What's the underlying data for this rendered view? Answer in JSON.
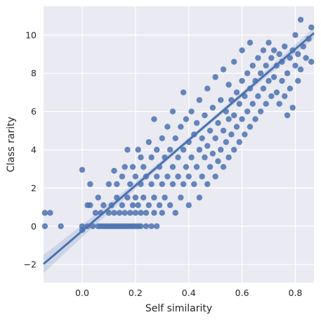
{
  "chart_data": {
    "type": "scatter",
    "title": "",
    "xlabel": "Self similarity",
    "ylabel": "Class rarity",
    "xlim": [
      -0.145,
      0.87
    ],
    "ylim": [
      -2.95,
      11.5
    ],
    "xticks": [
      0.0,
      0.2,
      0.4,
      0.6,
      0.8
    ],
    "xtick_labels": [
      "0.0",
      "0.2",
      "0.4",
      "0.6",
      "0.8"
    ],
    "yticks": [
      -2,
      0,
      2,
      4,
      6,
      8,
      10
    ],
    "ytick_labels": [
      "−2",
      "0",
      "2",
      "4",
      "6",
      "8",
      "10"
    ],
    "grid": true,
    "background": "#eaeaf2",
    "point_color": "#4c72b0",
    "regression_line": {
      "slope": 11.9,
      "intercept": -0.25,
      "ci_band": true
    },
    "scatter_points": [
      [
        -0.14,
        0.7
      ],
      [
        -0.12,
        0.7
      ],
      [
        -0.14,
        0.0
      ],
      [
        -0.08,
        0.0
      ],
      [
        0.0,
        2.95
      ],
      [
        0.0,
        0.0
      ],
      [
        0.02,
        0.0
      ],
      [
        0.02,
        1.1
      ],
      [
        0.03,
        1.1
      ],
      [
        0.03,
        2.2
      ],
      [
        0.04,
        0.0
      ],
      [
        0.05,
        0.7
      ],
      [
        0.06,
        0.0
      ],
      [
        0.06,
        1.5
      ],
      [
        0.07,
        0.0
      ],
      [
        0.07,
        0.7
      ],
      [
        0.08,
        0.0
      ],
      [
        0.08,
        1.1
      ],
      [
        0.09,
        0.0
      ],
      [
        0.1,
        0.0
      ],
      [
        0.1,
        0.7
      ],
      [
        0.1,
        2.2
      ],
      [
        0.11,
        0.0
      ],
      [
        0.11,
        1.1
      ],
      [
        0.12,
        0.0
      ],
      [
        0.12,
        0.7
      ],
      [
        0.13,
        0.0
      ],
      [
        0.13,
        1.5
      ],
      [
        0.13,
        2.2
      ],
      [
        0.14,
        0.0
      ],
      [
        0.14,
        0.7
      ],
      [
        0.15,
        0.0
      ],
      [
        0.15,
        1.1
      ],
      [
        0.15,
        2.6
      ],
      [
        0.16,
        0.0
      ],
      [
        0.16,
        0.7
      ],
      [
        0.16,
        3.1
      ],
      [
        0.17,
        0.0
      ],
      [
        0.17,
        1.5
      ],
      [
        0.17,
        4.0
      ],
      [
        0.18,
        0.0
      ],
      [
        0.18,
        0.7
      ],
      [
        0.18,
        2.2
      ],
      [
        0.19,
        0.0
      ],
      [
        0.19,
        1.1
      ],
      [
        0.19,
        3.1
      ],
      [
        0.2,
        0.0
      ],
      [
        0.2,
        0.7
      ],
      [
        0.2,
        1.5
      ],
      [
        0.2,
        2.6
      ],
      [
        0.21,
        0.0
      ],
      [
        0.21,
        1.1
      ],
      [
        0.21,
        4.0
      ],
      [
        0.22,
        0.0
      ],
      [
        0.22,
        0.7
      ],
      [
        0.22,
        2.2
      ],
      [
        0.22,
        3.6
      ],
      [
        0.23,
        1.5
      ],
      [
        0.23,
        3.1
      ],
      [
        0.24,
        0.0
      ],
      [
        0.24,
        0.7
      ],
      [
        0.24,
        2.6
      ],
      [
        0.25,
        1.1
      ],
      [
        0.25,
        4.4
      ],
      [
        0.26,
        0.0
      ],
      [
        0.26,
        2.2
      ],
      [
        0.26,
        3.6
      ],
      [
        0.27,
        0.7
      ],
      [
        0.27,
        1.5
      ],
      [
        0.27,
        5.6
      ],
      [
        0.28,
        0.0
      ],
      [
        0.28,
        2.6
      ],
      [
        0.28,
        4.0
      ],
      [
        0.29,
        1.1
      ],
      [
        0.29,
        3.1
      ],
      [
        0.3,
        0.7
      ],
      [
        0.3,
        2.2
      ],
      [
        0.3,
        4.6
      ],
      [
        0.31,
        1.5
      ],
      [
        0.31,
        3.6
      ],
      [
        0.32,
        2.6
      ],
      [
        0.32,
        5.2
      ],
      [
        0.33,
        1.1
      ],
      [
        0.33,
        4.0
      ],
      [
        0.34,
        2.2
      ],
      [
        0.34,
        3.1
      ],
      [
        0.34,
        6.0
      ],
      [
        0.35,
        0.7
      ],
      [
        0.35,
        4.6
      ],
      [
        0.36,
        2.6
      ],
      [
        0.36,
        3.6
      ],
      [
        0.37,
        1.5
      ],
      [
        0.37,
        5.2
      ],
      [
        0.38,
        2.2
      ],
      [
        0.38,
        4.0
      ],
      [
        0.38,
        7.0
      ],
      [
        0.39,
        3.1
      ],
      [
        0.39,
        5.6
      ],
      [
        0.4,
        1.1
      ],
      [
        0.4,
        4.4
      ],
      [
        0.4,
        2.6
      ],
      [
        0.41,
        3.6
      ],
      [
        0.41,
        6.0
      ],
      [
        0.42,
        2.2
      ],
      [
        0.42,
        4.8
      ],
      [
        0.43,
        3.1
      ],
      [
        0.43,
        5.4
      ],
      [
        0.44,
        1.5
      ],
      [
        0.44,
        4.0
      ],
      [
        0.44,
        6.6
      ],
      [
        0.45,
        2.6
      ],
      [
        0.45,
        4.6
      ],
      [
        0.46,
        3.6
      ],
      [
        0.46,
        5.8
      ],
      [
        0.47,
        2.2
      ],
      [
        0.47,
        4.2
      ],
      [
        0.47,
        7.2
      ],
      [
        0.48,
        3.1
      ],
      [
        0.48,
        5.0
      ],
      [
        0.49,
        3.8
      ],
      [
        0.49,
        6.2
      ],
      [
        0.5,
        2.6
      ],
      [
        0.5,
        4.6
      ],
      [
        0.5,
        7.8
      ],
      [
        0.51,
        3.4
      ],
      [
        0.51,
        5.4
      ],
      [
        0.52,
        4.0
      ],
      [
        0.52,
        6.6
      ],
      [
        0.53,
        3.1
      ],
      [
        0.53,
        5.0
      ],
      [
        0.53,
        8.2
      ],
      [
        0.54,
        4.4
      ],
      [
        0.54,
        6.0
      ],
      [
        0.55,
        3.6
      ],
      [
        0.55,
        5.6
      ],
      [
        0.55,
        7.4
      ],
      [
        0.56,
        4.8
      ],
      [
        0.56,
        6.6
      ],
      [
        0.57,
        4.0
      ],
      [
        0.57,
        5.8
      ],
      [
        0.57,
        8.6
      ],
      [
        0.58,
        5.2
      ],
      [
        0.58,
        7.0
      ],
      [
        0.59,
        4.4
      ],
      [
        0.59,
        6.4
      ],
      [
        0.6,
        5.6
      ],
      [
        0.6,
        7.6
      ],
      [
        0.6,
        9.2
      ],
      [
        0.61,
        4.8
      ],
      [
        0.61,
        6.8
      ],
      [
        0.62,
        6.0
      ],
      [
        0.62,
        8.0
      ],
      [
        0.63,
        5.2
      ],
      [
        0.63,
        7.2
      ],
      [
        0.63,
        9.6
      ],
      [
        0.64,
        6.4
      ],
      [
        0.64,
        8.4
      ],
      [
        0.65,
        5.6
      ],
      [
        0.65,
        7.6
      ],
      [
        0.66,
        6.8
      ],
      [
        0.66,
        8.8
      ],
      [
        0.67,
        6.0
      ],
      [
        0.67,
        8.0
      ],
      [
        0.68,
        7.2
      ],
      [
        0.68,
        9.2
      ],
      [
        0.69,
        6.4
      ],
      [
        0.69,
        8.4
      ],
      [
        0.7,
        7.6
      ],
      [
        0.7,
        9.6
      ],
      [
        0.71,
        6.8
      ],
      [
        0.71,
        8.8
      ],
      [
        0.72,
        7.8
      ],
      [
        0.72,
        9.2
      ],
      [
        0.73,
        7.0
      ],
      [
        0.73,
        8.4
      ],
      [
        0.74,
        6.4
      ],
      [
        0.74,
        9.0
      ],
      [
        0.75,
        7.6
      ],
      [
        0.75,
        8.6
      ],
      [
        0.76,
        6.8
      ],
      [
        0.76,
        9.4
      ],
      [
        0.77,
        8.0
      ],
      [
        0.77,
        5.8
      ],
      [
        0.78,
        8.8
      ],
      [
        0.78,
        7.2
      ],
      [
        0.79,
        9.2
      ],
      [
        0.79,
        6.2
      ],
      [
        0.8,
        8.4
      ],
      [
        0.8,
        10.0
      ],
      [
        0.81,
        7.6
      ],
      [
        0.81,
        9.0
      ],
      [
        0.82,
        8.2
      ],
      [
        0.82,
        10.8
      ],
      [
        0.83,
        9.4
      ],
      [
        0.84,
        8.8
      ],
      [
        0.85,
        9.8
      ],
      [
        0.86,
        8.6
      ],
      [
        0.86,
        10.4
      ],
      [
        0.0,
        -0.2
      ],
      [
        0.12,
        2.9
      ]
    ]
  }
}
